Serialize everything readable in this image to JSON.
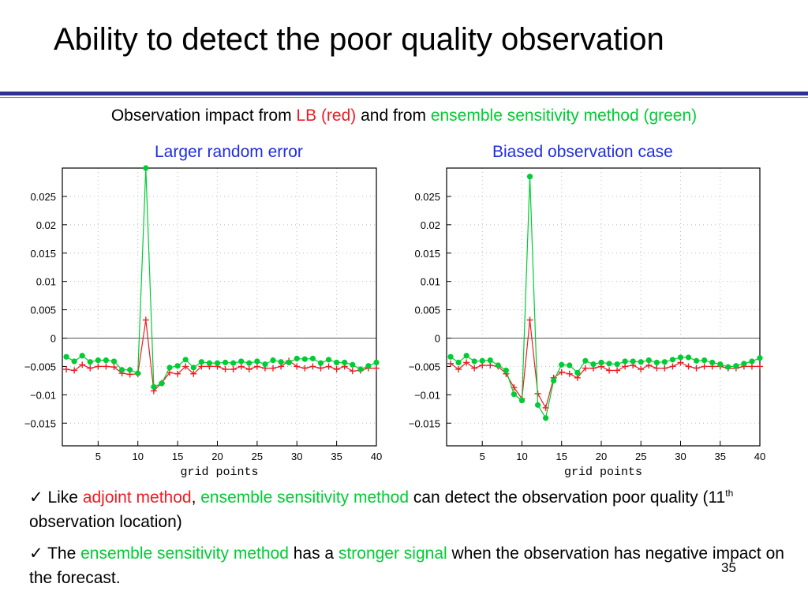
{
  "slide": {
    "title": "Ability to detect the poor quality observation",
    "subtitle": {
      "part1": "Observation impact from ",
      "part2": "LB (red)",
      "part3": " and from ",
      "part4": "ensemble sensitivity method (green)"
    },
    "page_number": "35",
    "bullets": [
      {
        "check": "✓",
        "t1": " Like ",
        "t2": "adjoint method",
        "t3": ", ",
        "t4": "ensemble sensitivity method",
        "t5": " can detect the observation poor quality (11",
        "t5_sup": "th",
        "t6": " observation location)"
      },
      {
        "check": "✓",
        "t1": " The ",
        "t2": "ensemble sensitivity method",
        "t3": " has a ",
        "t4": "stronger signal",
        "t5": " when the observation has negative impact on the forecast."
      }
    ]
  },
  "colors": {
    "title_rule": "#2e3192",
    "lb_red": "#ee1c24",
    "ensemble_green": "#00cc33",
    "panel_title_blue": "#1f2fdd"
  },
  "chart_data": [
    {
      "type": "line",
      "title": "Larger random error",
      "xlabel": "grid points",
      "ylabel": "",
      "xlim": [
        1,
        40
      ],
      "ylim": [
        -0.019,
        0.03
      ],
      "x_ticks": [
        5,
        10,
        15,
        20,
        25,
        30,
        35,
        40
      ],
      "y_ticks": [
        0.025,
        0.02,
        0.015,
        0.01,
        0.005,
        0,
        -0.005,
        -0.01,
        -0.015
      ],
      "y_tick_labels": [
        "0.025",
        "0.02",
        "0.015",
        "0.01",
        "0.005",
        "0",
        "−0.005",
        "−0.01",
        "−0.015"
      ],
      "grid": true,
      "x": [
        1,
        2,
        3,
        4,
        5,
        6,
        7,
        8,
        9,
        10,
        11,
        12,
        13,
        14,
        15,
        16,
        17,
        18,
        19,
        20,
        21,
        22,
        23,
        24,
        25,
        26,
        27,
        28,
        29,
        30,
        31,
        32,
        33,
        34,
        35,
        36,
        37,
        38,
        39,
        40
      ],
      "series": [
        {
          "color": "#ee1c24",
          "marker": "plus",
          "values": [
            -0.0055,
            -0.0057,
            -0.0047,
            -0.0053,
            -0.005,
            -0.005,
            -0.0051,
            -0.0062,
            -0.0064,
            -0.0063,
            0.0032,
            -0.0093,
            -0.0079,
            -0.0061,
            -0.0063,
            -0.005,
            -0.0063,
            -0.005,
            -0.005,
            -0.005,
            -0.0055,
            -0.0055,
            -0.005,
            -0.0055,
            -0.005,
            -0.0053,
            -0.0053,
            -0.005,
            -0.004,
            -0.005,
            -0.0053,
            -0.005,
            -0.0053,
            -0.005,
            -0.0055,
            -0.005,
            -0.0058,
            -0.0057,
            -0.0053,
            -0.0053
          ]
        },
        {
          "color": "#00cc33",
          "marker": "circle",
          "values": [
            -0.0033,
            -0.0041,
            -0.0031,
            -0.0042,
            -0.0039,
            -0.0039,
            -0.0041,
            -0.0056,
            -0.0056,
            -0.0062,
            0.03,
            -0.0086,
            -0.008,
            -0.0052,
            -0.0049,
            -0.0038,
            -0.0052,
            -0.0042,
            -0.0044,
            -0.0044,
            -0.0043,
            -0.0044,
            -0.0041,
            -0.0044,
            -0.0041,
            -0.0046,
            -0.0039,
            -0.0042,
            -0.0043,
            -0.0036,
            -0.0037,
            -0.0036,
            -0.0044,
            -0.0038,
            -0.0043,
            -0.0043,
            -0.0047,
            -0.0055,
            -0.0049,
            -0.0043
          ]
        }
      ]
    },
    {
      "type": "line",
      "title": "Biased observation case",
      "xlabel": "grid points",
      "ylabel": "",
      "xlim": [
        1,
        40
      ],
      "ylim": [
        -0.019,
        0.03
      ],
      "x_ticks": [
        5,
        10,
        15,
        20,
        25,
        30,
        35,
        40
      ],
      "y_ticks": [
        0.025,
        0.02,
        0.015,
        0.01,
        0.005,
        0,
        -0.005,
        -0.01,
        -0.015
      ],
      "y_tick_labels": [
        "0.025",
        "0.02",
        "0.015",
        "0.01",
        "0.005",
        "0",
        "−0.005",
        "−0.01",
        "−0.015"
      ],
      "grid": true,
      "x": [
        1,
        2,
        3,
        4,
        5,
        6,
        7,
        8,
        9,
        10,
        11,
        12,
        13,
        14,
        15,
        16,
        17,
        18,
        19,
        20,
        21,
        22,
        23,
        24,
        25,
        26,
        27,
        28,
        29,
        30,
        31,
        32,
        33,
        34,
        35,
        36,
        37,
        38,
        39,
        40
      ],
      "series": [
        {
          "color": "#ee1c24",
          "marker": "plus",
          "values": [
            -0.0045,
            -0.0055,
            -0.0043,
            -0.0053,
            -0.0048,
            -0.0048,
            -0.005,
            -0.0063,
            -0.0087,
            -0.0107,
            0.0032,
            -0.0098,
            -0.0123,
            -0.007,
            -0.006,
            -0.0063,
            -0.007,
            -0.0053,
            -0.0053,
            -0.005,
            -0.0057,
            -0.0057,
            -0.005,
            -0.0048,
            -0.0055,
            -0.0048,
            -0.0053,
            -0.0053,
            -0.005,
            -0.0043,
            -0.005,
            -0.0053,
            -0.005,
            -0.005,
            -0.005,
            -0.0053,
            -0.0053,
            -0.005,
            -0.005,
            -0.005
          ]
        },
        {
          "color": "#00cc33",
          "marker": "circle",
          "values": [
            -0.0033,
            -0.0043,
            -0.0031,
            -0.0041,
            -0.004,
            -0.0039,
            -0.0048,
            -0.0057,
            -0.0099,
            -0.011,
            0.0285,
            -0.0118,
            -0.0141,
            -0.0075,
            -0.0047,
            -0.0048,
            -0.0061,
            -0.004,
            -0.0046,
            -0.0043,
            -0.0045,
            -0.0046,
            -0.0041,
            -0.0041,
            -0.0042,
            -0.0039,
            -0.0043,
            -0.0042,
            -0.0038,
            -0.0034,
            -0.0034,
            -0.004,
            -0.0039,
            -0.0043,
            -0.0046,
            -0.0051,
            -0.0049,
            -0.0045,
            -0.0041,
            -0.0035
          ]
        }
      ]
    }
  ]
}
